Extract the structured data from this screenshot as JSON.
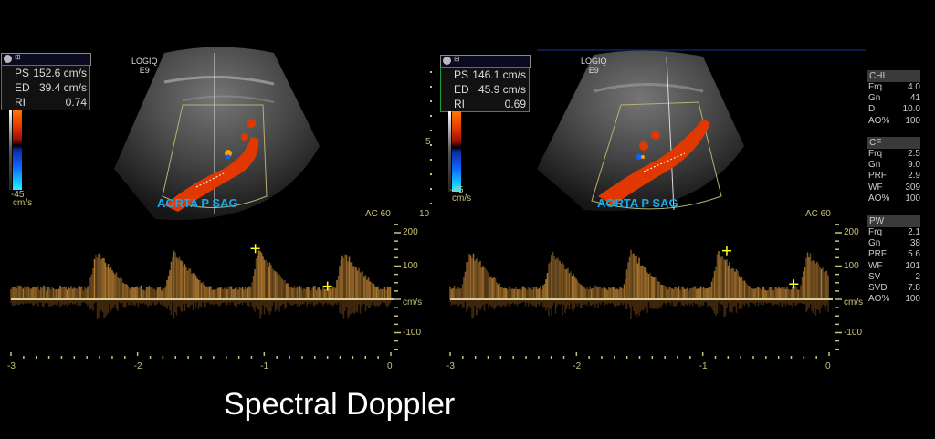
{
  "caption": "Spectral Doppler",
  "panels": [
    {
      "measurements": {
        "ps_label": "PS",
        "ps_value": "152.6 cm/s",
        "ed_label": "ED",
        "ed_value": "39.4 cm/s",
        "ri_label": "RI",
        "ri_value": "0.74"
      },
      "device": {
        "line1": "LOGIQ",
        "line2": "E9"
      },
      "color_scale": {
        "min": "-45",
        "unit": "cm/s"
      },
      "vessel_label": "AORTA P SAG",
      "ac_label": "AC 60",
      "y_ticks": [
        "200",
        "100",
        "cm/s",
        "-100"
      ],
      "x_ticks": [
        "-3",
        "-2",
        "-1",
        "0"
      ],
      "peaks_s": [
        -2.33,
        -1.72,
        -1.05,
        -0.38
      ],
      "calipers": [
        {
          "t": -1.07,
          "v": 152.6
        },
        {
          "t": -0.5,
          "v": 39.4
        }
      ]
    },
    {
      "measurements": {
        "ps_label": "PS",
        "ps_value": "146.1 cm/s",
        "ed_label": "ED",
        "ed_value": "45.9 cm/s",
        "ri_label": "RI",
        "ri_value": "0.69"
      },
      "device": {
        "line1": "LOGIQ",
        "line2": "E9"
      },
      "color_scale": {
        "min": "-45",
        "unit": "cm/s"
      },
      "depth_marks": [
        "5",
        "10"
      ],
      "vessel_label": "AORTA P SAG",
      "ac_label": "AC 60",
      "y_ticks": [
        "200",
        "100",
        "cm/s",
        "-100"
      ],
      "x_ticks": [
        "-3",
        "-2",
        "-1",
        "0"
      ],
      "peaks_s": [
        -2.85,
        -2.2,
        -1.57,
        -0.88,
        -0.17
      ],
      "calipers": [
        {
          "t": -0.81,
          "v": 146.1
        },
        {
          "t": -0.28,
          "v": 45.9
        }
      ]
    }
  ],
  "params": {
    "chi": {
      "title": "CHI",
      "rows": [
        [
          "Frq",
          "4.0"
        ],
        [
          "Gn",
          "41"
        ],
        [
          "D",
          "10.0"
        ],
        [
          "AO%",
          "100"
        ]
      ]
    },
    "cf": {
      "title": "CF",
      "rows": [
        [
          "Frq",
          "2.5"
        ],
        [
          "Gn",
          "9.0"
        ],
        [
          "PRF",
          "2.9"
        ],
        [
          "WF",
          "309"
        ],
        [
          "AO%",
          "100"
        ]
      ]
    },
    "pw": {
      "title": "PW",
      "rows": [
        [
          "Frq",
          "2.1"
        ],
        [
          "Gn",
          "38"
        ],
        [
          "PRF",
          "5.6"
        ],
        [
          "WF",
          "101"
        ],
        [
          "SV",
          "2"
        ],
        [
          "SVD",
          "7.8"
        ],
        [
          "AO%",
          "100"
        ]
      ]
    }
  },
  "colors": {
    "flow_red": "#e83a00",
    "caliper": "#ffff20",
    "axis": "#c8c27a",
    "box_border": "#1e9a3a",
    "label": "#18a8e8"
  }
}
